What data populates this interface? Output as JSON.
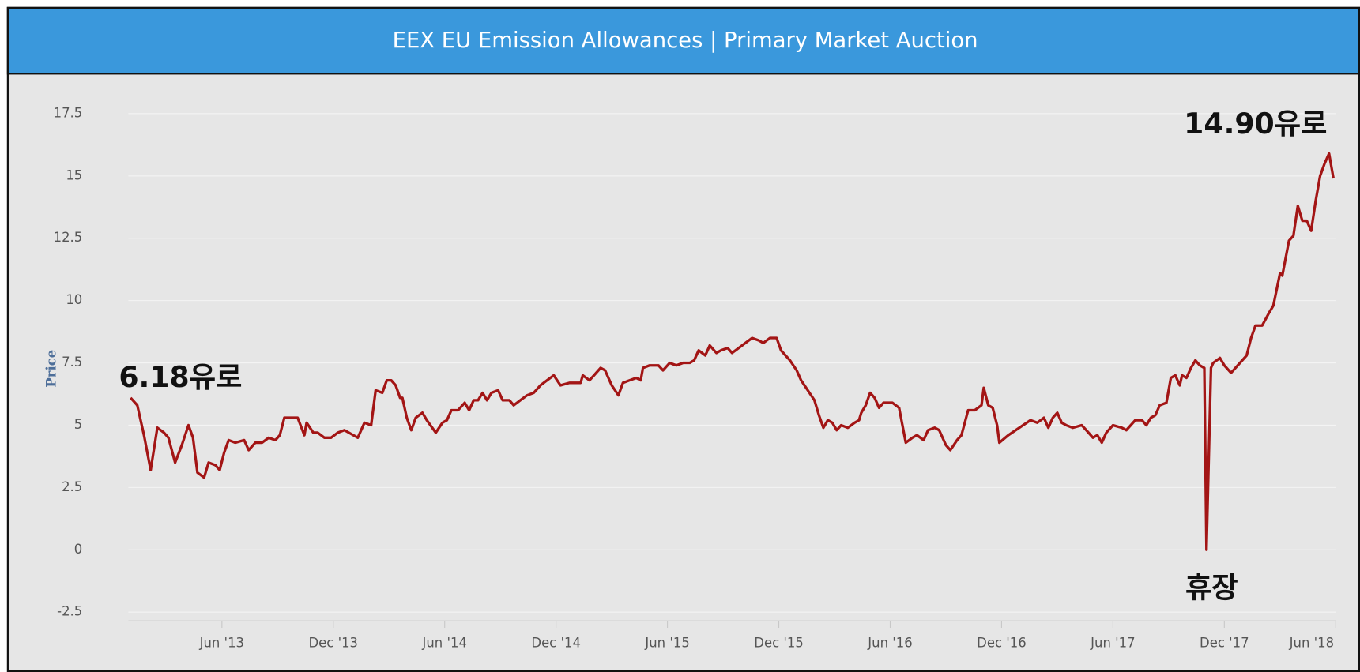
{
  "chart_data": {
    "type": "line",
    "title": "EEX EU Emission Allowances | Primary Market Auction",
    "ylabel": "Price",
    "annotations": [
      "6.18유로",
      "14.90유로",
      "휴장"
    ],
    "grid": true,
    "ylim": [
      -2.5,
      17.5
    ],
    "yticks": [
      -2.5,
      0,
      2.5,
      5,
      7.5,
      10,
      12.5,
      15,
      17.5
    ],
    "xlim": [
      2013,
      2018.42
    ],
    "xticks": [
      {
        "value": 2013.42,
        "label": "Jun '13"
      },
      {
        "value": 2013.92,
        "label": "Dec '13"
      },
      {
        "value": 2014.42,
        "label": "Jun '14"
      },
      {
        "value": 2014.92,
        "label": "Dec '14"
      },
      {
        "value": 2015.42,
        "label": "Jun '15"
      },
      {
        "value": 2015.92,
        "label": "Dec '15"
      },
      {
        "value": 2016.42,
        "label": "Jun '16"
      },
      {
        "value": 2016.92,
        "label": "Dec '16"
      },
      {
        "value": 2017.42,
        "label": "Jun '17"
      },
      {
        "value": 2017.92,
        "label": "Dec '17"
      },
      {
        "value": 2018.42,
        "label": "Jun '18"
      }
    ],
    "series": [
      {
        "color": "#a31515",
        "x": [
          2013.01,
          2013.04,
          2013.07,
          2013.1,
          2013.13,
          2013.16,
          2013.18,
          2013.21,
          2013.24,
          2013.27,
          2013.29,
          2013.31,
          2013.34,
          2013.36,
          2013.39,
          2013.41,
          2013.43,
          2013.45,
          2013.48,
          2013.52,
          2013.54,
          2013.57,
          2013.6,
          2013.63,
          2013.66,
          2013.68,
          2013.7,
          2013.72,
          2013.76,
          2013.79,
          2013.8,
          2013.83,
          2013.85,
          2013.88,
          2013.91,
          2013.94,
          2013.97,
          2014.03,
          2014.06,
          2014.09,
          2014.11,
          2014.14,
          2014.16,
          2014.18,
          2014.2,
          2014.22,
          2014.23,
          2014.25,
          2014.27,
          2014.29,
          2014.32,
          2014.34,
          2014.38,
          2014.41,
          2014.43,
          2014.45,
          2014.48,
          2014.51,
          2014.53,
          2014.55,
          2014.57,
          2014.59,
          2014.61,
          2014.63,
          2014.66,
          2014.68,
          2014.71,
          2014.73,
          2014.76,
          2014.79,
          2014.82,
          2014.85,
          2014.88,
          2014.91,
          2014.94,
          2014.98,
          2015.03,
          2015.04,
          2015.07,
          2015.09,
          2015.12,
          2015.14,
          2015.17,
          2015.2,
          2015.22,
          2015.25,
          2015.28,
          2015.3,
          2015.31,
          2015.34,
          2015.38,
          2015.4,
          2015.43,
          2015.46,
          2015.49,
          2015.52,
          2015.54,
          2015.56,
          2015.59,
          2015.61,
          2015.64,
          2015.66,
          2015.69,
          2015.71,
          2015.74,
          2015.77,
          2015.8,
          2015.83,
          2015.85,
          2015.88,
          2015.91,
          2015.93,
          2015.97,
          2016.0,
          2016.02,
          2016.05,
          2016.08,
          2016.1,
          2016.12,
          2016.14,
          2016.16,
          2016.18,
          2016.2,
          2016.23,
          2016.26,
          2016.28,
          2016.29,
          2016.31,
          2016.33,
          2016.35,
          2016.37,
          2016.39,
          2016.43,
          2016.46,
          2016.49,
          2016.52,
          2016.54,
          2016.57,
          2016.59,
          2016.62,
          2016.64,
          2016.67,
          2016.69,
          2016.72,
          2016.74,
          2016.77,
          2016.8,
          2016.83,
          2016.84,
          2016.86,
          2016.88,
          2016.9,
          2016.91,
          2016.95,
          2017.0,
          2017.05,
          2017.08,
          2017.11,
          2017.13,
          2017.15,
          2017.17,
          2017.19,
          2017.21,
          2017.24,
          2017.28,
          2017.3,
          2017.33,
          2017.35,
          2017.37,
          2017.39,
          2017.42,
          2017.46,
          2017.48,
          2017.52,
          2017.55,
          2017.57,
          2017.59,
          2017.61,
          2017.63,
          2017.66,
          2017.68,
          2017.7,
          2017.72,
          2017.73,
          2017.75,
          2017.77,
          2017.79,
          2017.81,
          2017.83,
          2017.84,
          2017.86,
          2017.87,
          2017.9,
          2017.92,
          2017.95,
          2017.98,
          2018.02,
          2018.04,
          2018.06,
          2018.09,
          2018.12,
          2018.14,
          2018.17,
          2018.18,
          2018.21,
          2018.23,
          2018.25,
          2018.27,
          2018.29,
          2018.31,
          2018.33,
          2018.35,
          2018.37,
          2018.39,
          2018.41
        ],
        "values": [
          6.1,
          5.8,
          4.6,
          3.2,
          4.9,
          4.7,
          4.5,
          3.5,
          4.2,
          5.0,
          4.5,
          3.1,
          2.9,
          3.5,
          3.4,
          3.2,
          3.9,
          4.4,
          4.3,
          4.4,
          4.0,
          4.3,
          4.3,
          4.5,
          4.4,
          4.6,
          5.3,
          5.3,
          5.3,
          4.6,
          5.1,
          4.7,
          4.7,
          4.5,
          4.5,
          4.7,
          4.8,
          4.5,
          5.1,
          5.0,
          6.4,
          6.3,
          6.8,
          6.8,
          6.6,
          6.1,
          6.1,
          5.3,
          4.8,
          5.3,
          5.5,
          5.2,
          4.7,
          5.1,
          5.2,
          5.6,
          5.6,
          5.9,
          5.6,
          6.0,
          6.0,
          6.3,
          6.0,
          6.3,
          6.4,
          6.0,
          6.0,
          5.8,
          6.0,
          6.2,
          6.3,
          6.6,
          6.8,
          7.0,
          6.6,
          6.7,
          6.7,
          7.0,
          6.8,
          7.0,
          7.3,
          7.2,
          6.6,
          6.2,
          6.7,
          6.8,
          6.9,
          6.8,
          7.3,
          7.4,
          7.4,
          7.2,
          7.5,
          7.4,
          7.5,
          7.5,
          7.6,
          8.0,
          7.8,
          8.2,
          7.9,
          8.0,
          8.1,
          7.9,
          8.1,
          8.3,
          8.5,
          8.4,
          8.3,
          8.5,
          8.5,
          8.0,
          7.6,
          7.2,
          6.8,
          6.4,
          6.0,
          5.4,
          4.9,
          5.2,
          5.1,
          4.8,
          5.0,
          4.9,
          5.1,
          5.2,
          5.5,
          5.8,
          6.3,
          6.1,
          5.7,
          5.9,
          5.9,
          5.7,
          4.3,
          4.5,
          4.6,
          4.4,
          4.8,
          4.9,
          4.8,
          4.2,
          4.0,
          4.4,
          4.6,
          5.6,
          5.6,
          5.8,
          6.5,
          5.8,
          5.7,
          5.0,
          4.3,
          4.6,
          4.9,
          5.2,
          5.1,
          5.3,
          4.9,
          5.3,
          5.5,
          5.1,
          5.0,
          4.9,
          5.0,
          4.8,
          4.5,
          4.6,
          4.3,
          4.7,
          5.0,
          4.9,
          4.8,
          5.2,
          5.2,
          5.0,
          5.3,
          5.4,
          5.8,
          5.9,
          6.9,
          7.0,
          6.6,
          7.0,
          6.9,
          7.3,
          7.6,
          7.4,
          7.3,
          0.0,
          7.3,
          7.5,
          7.7,
          7.4,
          7.1,
          7.4,
          7.8,
          8.5,
          9.0,
          9.0,
          9.5,
          9.8,
          11.1,
          11.0,
          12.4,
          12.6,
          13.8,
          13.2,
          13.2,
          12.8,
          14.0,
          15.0,
          15.5,
          15.9,
          14.9
        ]
      }
    ]
  }
}
